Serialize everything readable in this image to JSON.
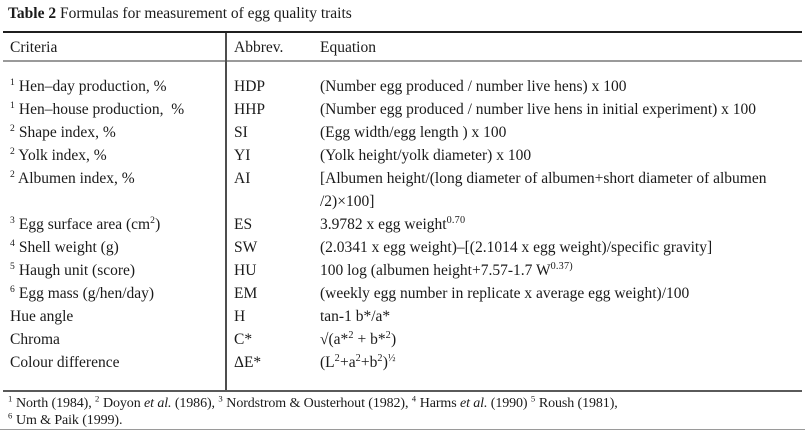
{
  "title": {
    "label_bold": "Table 2",
    "label_rest": " Formulas for measurement of egg quality traits"
  },
  "table": {
    "headers": {
      "criteria": "Criteria",
      "abbrev": "Abbrev.",
      "equation": "Equation"
    },
    "rows": [
      {
        "criteria_html": "<sup>1</sup> Hen–day production, %",
        "abbrev": "HDP",
        "equation_html": "(Number egg produced / number live hens) x 100"
      },
      {
        "criteria_html": "<sup>1</sup> Hen–house production,  %",
        "abbrev": "HHP",
        "equation_html": "(Number egg produced / number live hens in initial experiment) x 100"
      },
      {
        "criteria_html": "<sup>2</sup> Shape index, %",
        "abbrev": "SI",
        "equation_html": "(Egg width/egg length ) x 100"
      },
      {
        "criteria_html": "<sup>2</sup> Yolk index, %",
        "abbrev": "YI",
        "equation_html": "(Yolk height/yolk diameter) x 100"
      },
      {
        "criteria_html": "<sup>2</sup> Albumen index, %",
        "abbrev": "AI",
        "equation_html": "[Albumen height/(long diameter of albumen+short diameter of albumen<br>/2)×100]"
      },
      {
        "criteria_html": "<sup>3</sup> Egg surface area (cm<sup>2</sup>)",
        "abbrev": "ES",
        "equation_html": "3.9782 x egg weight<sup>0.70</sup>"
      },
      {
        "criteria_html": "<sup>4</sup> Shell weight (g)",
        "abbrev": "SW",
        "equation_html": "(2.0341 x egg weight)–[(2.1014 x egg weight)/specific gravity]"
      },
      {
        "criteria_html": "<sup>5</sup> Haugh unit (score)",
        "abbrev": "HU",
        "equation_html": "100 log (albumen height+7.57-1.7 W<sup>0.37)</sup>"
      },
      {
        "criteria_html": "<sup>6</sup> Egg mass (g/hen/day)",
        "abbrev": "EM",
        "equation_html": "(weekly egg number in replicate x average egg weight)/100"
      },
      {
        "criteria_html": "Hue angle",
        "abbrev": "H",
        "equation_html": "tan-1 b*/a*"
      },
      {
        "criteria_html": "Chroma",
        "abbrev": "C*",
        "equation_html": "√(a*<sup>2</sup> + b*<sup>2</sup>)"
      },
      {
        "criteria_html": "Colour difference",
        "abbrev": "ΔE*",
        "equation_html": "(L<sup>2</sup>+a<sup>2</sup>+b<sup>2</sup>)<sup>½</sup>"
      }
    ]
  },
  "footnotes": {
    "line1_html": "<sup>1</sup> North (1984), <sup>2</sup> Doyon <i>et al.</i> (1986), <sup>3</sup> Nordstrom &amp; Ousterhout (1982), <sup>4</sup> Harms <i>et al.</i> (1990) <sup>5</sup> Roush (1981),",
    "line2_html": "<sup>6</sup> Um &amp; Paik (1999)."
  },
  "colors": {
    "background": "#ffffff",
    "text": "#1a1a1a",
    "rule_dark": "#1f1f1f",
    "rule_gray": "#9a9a9a",
    "divider": "#4d4d4d"
  }
}
